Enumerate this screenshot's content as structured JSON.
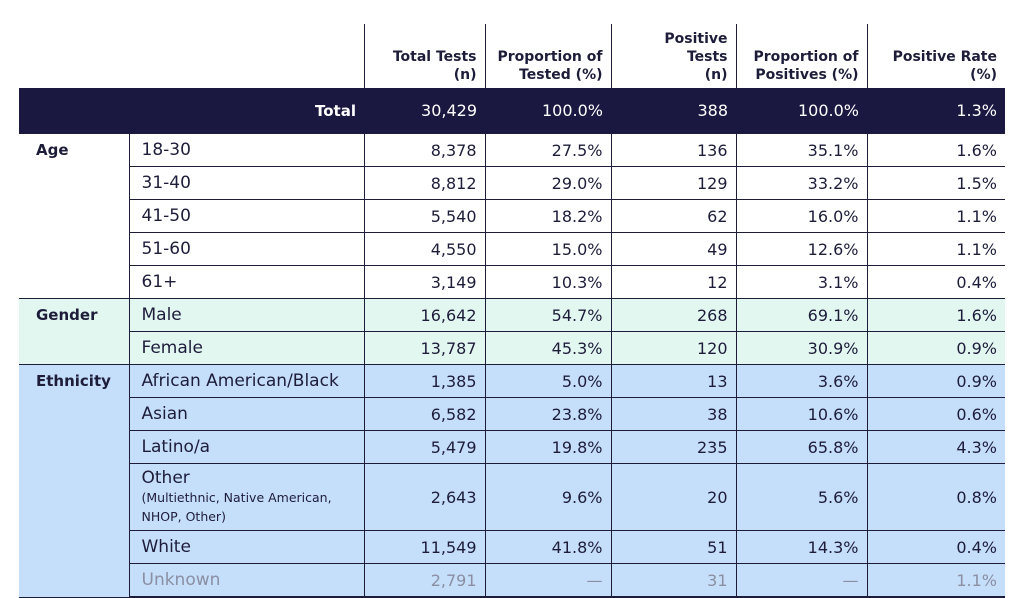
{
  "headers": {
    "total_tests": [
      "Total Tests",
      "(n)"
    ],
    "prop_tested": [
      "Proportion of",
      "Tested (%)"
    ],
    "positive_tests": [
      "Positive Tests",
      "(n)"
    ],
    "prop_positives": [
      "Proportion of",
      "Positives (%)"
    ],
    "positive_rate": [
      "Positive Rate",
      "(%)"
    ]
  },
  "total": {
    "label": "Total",
    "values": [
      "30,429",
      "100.0%",
      "388",
      "100.0%",
      "1.3%"
    ]
  },
  "groups": [
    {
      "label": "Age",
      "rows": [
        {
          "label": "18-30",
          "values": [
            "8,378",
            "27.5%",
            "136",
            "35.1%",
            "1.6%"
          ]
        },
        {
          "label": "31-40",
          "values": [
            "8,812",
            "29.0%",
            "129",
            "33.2%",
            "1.5%"
          ]
        },
        {
          "label": "41-50",
          "values": [
            "5,540",
            "18.2%",
            "62",
            "16.0%",
            "1.1%"
          ]
        },
        {
          "label": "51-60",
          "values": [
            "4,550",
            "15.0%",
            "49",
            "12.6%",
            "1.1%"
          ]
        },
        {
          "label": "61+",
          "values": [
            "3,149",
            "10.3%",
            "12",
            "3.1%",
            "0.4%"
          ]
        }
      ]
    },
    {
      "label": "Gender",
      "rows": [
        {
          "label": "Male",
          "values": [
            "16,642",
            "54.7%",
            "268",
            "69.1%",
            "1.6%"
          ]
        },
        {
          "label": "Female",
          "values": [
            "13,787",
            "45.3%",
            "120",
            "30.9%",
            "0.9%"
          ]
        }
      ]
    },
    {
      "label": "Ethnicity",
      "rows": [
        {
          "label": "African American/Black",
          "values": [
            "1,385",
            "5.0%",
            "13",
            "3.6%",
            "0.9%"
          ]
        },
        {
          "label": "Asian",
          "values": [
            "6,582",
            "23.8%",
            "38",
            "10.6%",
            "0.6%"
          ]
        },
        {
          "label": "Latino/a",
          "values": [
            "5,479",
            "19.8%",
            "235",
            "65.8%",
            "4.3%"
          ]
        },
        {
          "label": "Other",
          "note_lines": [
            "(Multiethnic, Native American,",
            "NHOP, Other)"
          ],
          "values": [
            "2,643",
            "9.6%",
            "20",
            "5.6%",
            "0.8%"
          ]
        },
        {
          "label": "White",
          "values": [
            "11,549",
            "41.8%",
            "51",
            "14.3%",
            "0.4%"
          ]
        },
        {
          "label": "Unknown",
          "values": [
            "2,791",
            "—",
            "31",
            "—",
            "1.1%"
          ]
        }
      ]
    }
  ]
}
